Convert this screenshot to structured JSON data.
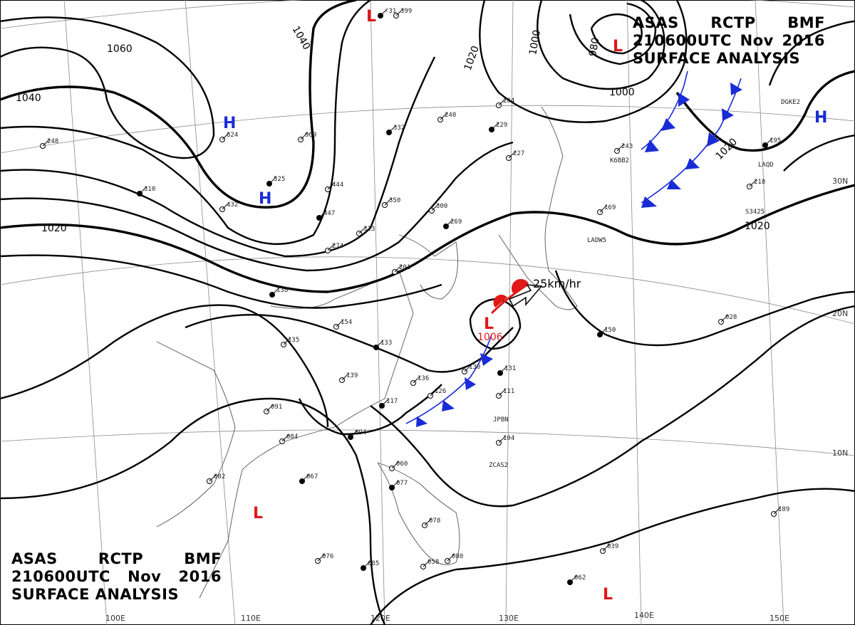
{
  "header": {
    "line1": [
      "ASAS",
      "RCTP",
      "BMF"
    ],
    "line2": [
      "210600UTC",
      "Nov",
      "2016"
    ],
    "line3": "SURFACE ANALYSIS"
  },
  "isobar_labels": [
    "1060",
    "1040",
    "1040",
    "1020",
    "1020",
    "1000",
    "1000",
    "980",
    "1020",
    "1020"
  ],
  "pressure_centers": [
    "H",
    "H",
    "H",
    "L",
    "L",
    "L",
    "L",
    "L"
  ],
  "colors": {
    "high": "#1a2cd6",
    "low": "#e01818",
    "cold_front": "#1a2cd6",
    "warm_front": "#e01818",
    "isobar": "#000000",
    "grid": "#8a8a8a"
  },
  "low_pressure_value": "1006",
  "storm_motion": "25km/hr",
  "grid_labels": [
    "30N",
    "20N",
    "10N",
    "100E",
    "110E",
    "120E",
    "130E",
    "140E",
    "150E"
  ],
  "station_codes": [
    "K6BB2",
    "LADW5",
    "JPBN",
    "ZCAS2",
    "LAQD",
    "DGKE2",
    "S3425"
  ],
  "station_values": [
    "-31",
    "399",
    "248",
    "310",
    "624",
    "969",
    "525",
    "444",
    "432",
    "447",
    "313",
    "274",
    "332",
    "350",
    "300",
    "269",
    "204",
    "240",
    "229",
    "227",
    "201",
    "138",
    "154",
    "135",
    "133",
    "139",
    "136",
    "117",
    "126",
    "130",
    "131",
    "111",
    "104",
    "094",
    "091",
    "084",
    "067",
    "082",
    "060",
    "077",
    "078",
    "076",
    "085",
    "080",
    "058",
    "062",
    "189",
    "218",
    "195",
    "243",
    "169",
    "150",
    "028",
    "039"
  ]
}
